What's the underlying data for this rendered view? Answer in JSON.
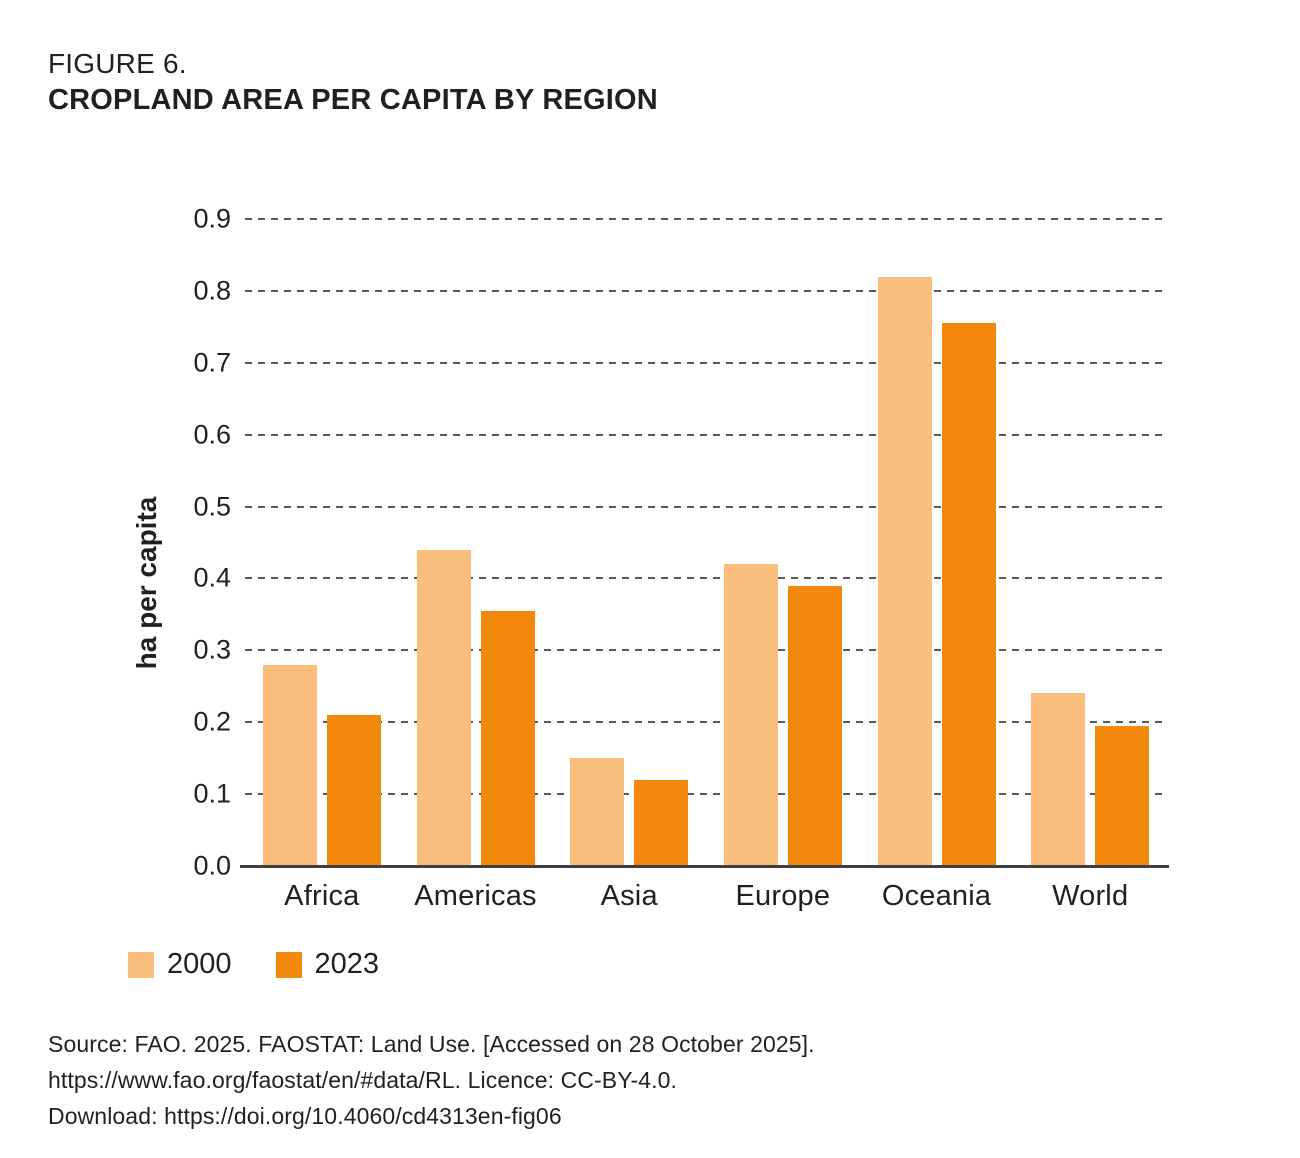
{
  "figure": {
    "label": "FIGURE 6.",
    "title": "CROPLAND AREA PER CAPITA BY REGION"
  },
  "chart_data": {
    "type": "bar",
    "title": "CROPLAND AREA PER CAPITA BY REGION",
    "categories": [
      "Africa",
      "Americas",
      "Asia",
      "Europe",
      "Oceania",
      "World"
    ],
    "series": [
      {
        "name": "2000",
        "color": "#F9BE7B",
        "values": [
          0.28,
          0.44,
          0.15,
          0.42,
          0.82,
          0.24
        ]
      },
      {
        "name": "2023",
        "color": "#F2890D",
        "values": [
          0.21,
          0.355,
          0.12,
          0.39,
          0.755,
          0.195
        ]
      }
    ],
    "xlabel": "",
    "ylabel": "ha per capita",
    "ylim": [
      0.0,
      0.9
    ],
    "ytick_labels": [
      "0.0",
      "0.1",
      "0.2",
      "0.3",
      "0.4",
      "0.5",
      "0.6",
      "0.7",
      "0.8",
      "0.9"
    ],
    "grid": "horizontal-dashed",
    "legend_position": "bottom-left",
    "legend_entries": [
      "2000",
      "2023"
    ]
  },
  "source": {
    "line1": "Source: FAO. 2025. FAOSTAT: Land Use. [Accessed on 28 October 2025].",
    "line2": "https://www.fao.org/faostat/en/#data/RL. Licence: CC-BY-4.0.",
    "line3": "Download: https://doi.org/10.4060/cd4313en-fig06"
  },
  "colors": {
    "text": "#231f20",
    "gridline": "#59595b",
    "axis_line": "#3f3f41",
    "series_2000": "#F9BE7B",
    "series_2023": "#F2890D"
  }
}
